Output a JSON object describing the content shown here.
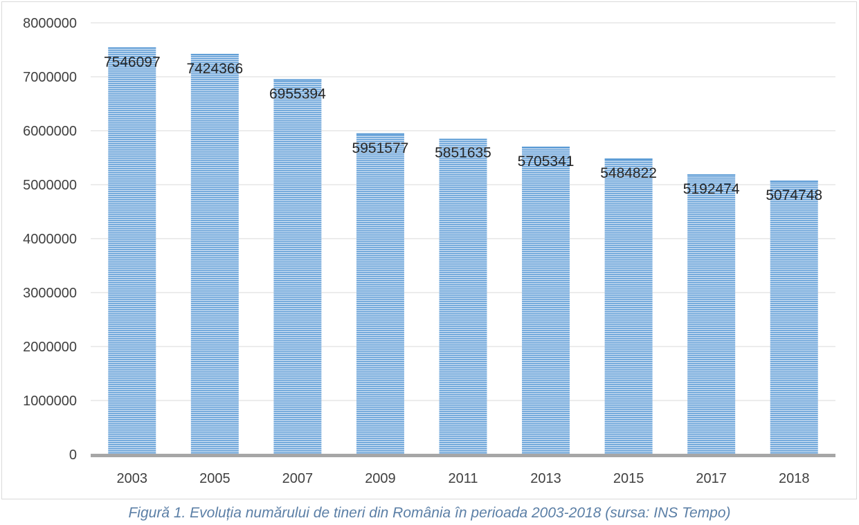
{
  "caption": "Figură 1. Evoluția numărului de tineri din România în perioada 2003-2018 (sursa: INS Tempo)",
  "chart_data": {
    "type": "bar",
    "title": "",
    "xlabel": "",
    "ylabel": "",
    "categories": [
      "2003",
      "2005",
      "2007",
      "2009",
      "2011",
      "2013",
      "2015",
      "2017",
      "2018"
    ],
    "values": [
      7546097,
      7424366,
      6955394,
      5951577,
      5851635,
      5705341,
      5484822,
      5192474,
      5074748
    ],
    "data_labels": [
      "7546097",
      "7424366",
      "6955394",
      "5951577",
      "5851635",
      "5705341",
      "5484822",
      "5192474",
      "5074748"
    ],
    "ylim": [
      0,
      8000000
    ],
    "yticks": [
      0,
      1000000,
      2000000,
      3000000,
      4000000,
      5000000,
      6000000,
      7000000,
      8000000
    ],
    "ytick_labels": [
      "0",
      "1000000",
      "2000000",
      "3000000",
      "4000000",
      "5000000",
      "6000000",
      "7000000",
      "8000000"
    ],
    "grid": true,
    "legend": "none",
    "colors": {
      "bar_fill": "#9dc3e6",
      "bar_stripe": "#5b9bd5",
      "gridline": "#d9d9d9",
      "axis_line": "#a6a6a6"
    }
  }
}
